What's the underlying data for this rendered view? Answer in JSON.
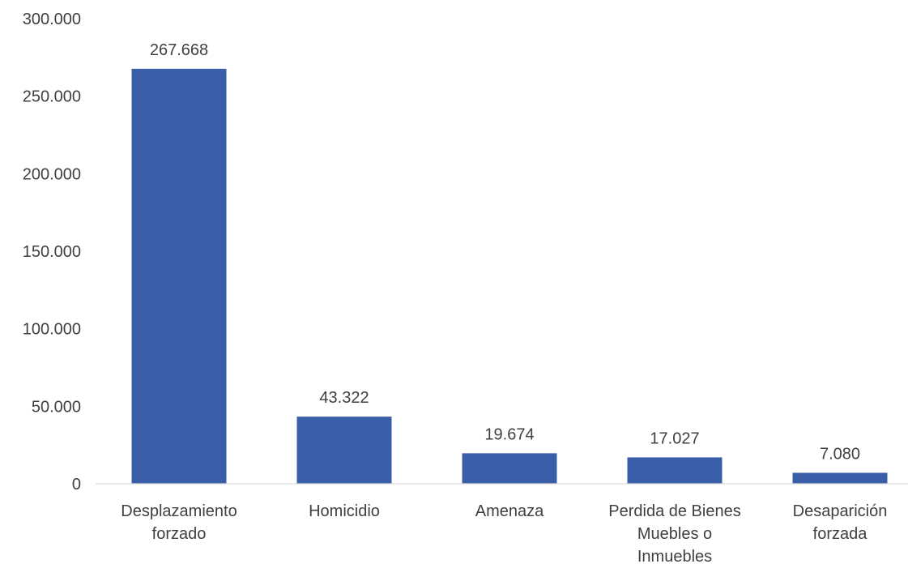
{
  "chart_data": {
    "type": "bar",
    "title": "",
    "xlabel": "",
    "ylabel": "",
    "categories": [
      [
        "Desplazamiento",
        "forzado"
      ],
      [
        "Homicidio"
      ],
      [
        "Amenaza"
      ],
      [
        "Perdida de Bienes",
        "Muebles o",
        "Inmuebles"
      ],
      [
        "Desaparición",
        "forzada"
      ]
    ],
    "values": [
      267668,
      43322,
      19674,
      17027,
      7080
    ],
    "value_labels": [
      "267.668",
      "43.322",
      "19.674",
      "17.027",
      "7.080"
    ],
    "ylim": [
      0,
      300000
    ],
    "y_ticks": [
      0,
      50000,
      100000,
      150000,
      200000,
      250000,
      300000
    ],
    "y_tick_labels": [
      "0",
      "50.000",
      "100.000",
      "150.000",
      "200.000",
      "250.000",
      "300.000"
    ],
    "grid": false,
    "legend": "none",
    "bar_color": "#3a5fa8"
  }
}
